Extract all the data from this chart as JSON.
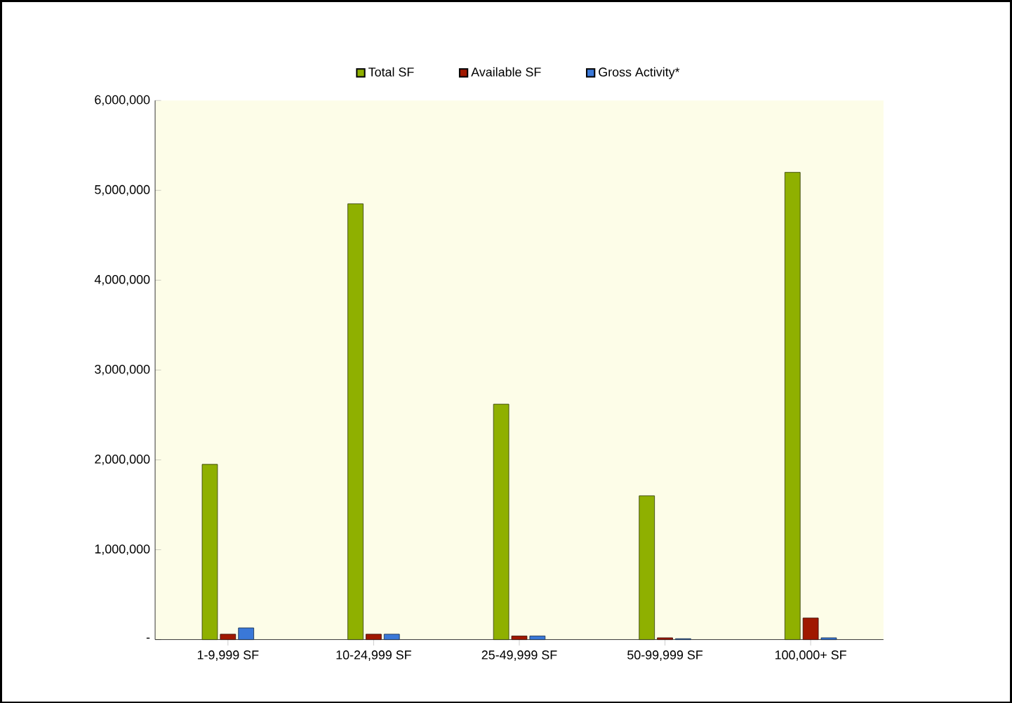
{
  "chart_data": {
    "type": "bar",
    "categories": [
      "1-9,999 SF",
      "10-24,999 SF",
      "25-49,999 SF",
      "50-99,999 SF",
      "100,000+ SF"
    ],
    "series": [
      {
        "name": "Total SF",
        "color": "#8fb000",
        "values": [
          1950000,
          4850000,
          2620000,
          1600000,
          5200000
        ]
      },
      {
        "name": "Available SF",
        "color": "#a01800",
        "values": [
          60000,
          60000,
          40000,
          20000,
          240000
        ]
      },
      {
        "name": "Gross Activity*",
        "color": "#3a78d8",
        "values": [
          130000,
          60000,
          40000,
          10000,
          20000
        ]
      }
    ],
    "ylim": [
      0,
      6000000
    ],
    "yticks": [
      {
        "value": 0,
        "label": "-"
      },
      {
        "value": 1000000,
        "label": "1,000,000"
      },
      {
        "value": 2000000,
        "label": "2,000,000"
      },
      {
        "value": 3000000,
        "label": "3,000,000"
      },
      {
        "value": 4000000,
        "label": "4,000,000"
      },
      {
        "value": 5000000,
        "label": "5,000,000"
      },
      {
        "value": 6000000,
        "label": "6,000,000"
      }
    ],
    "grid": false,
    "legend": "top"
  }
}
